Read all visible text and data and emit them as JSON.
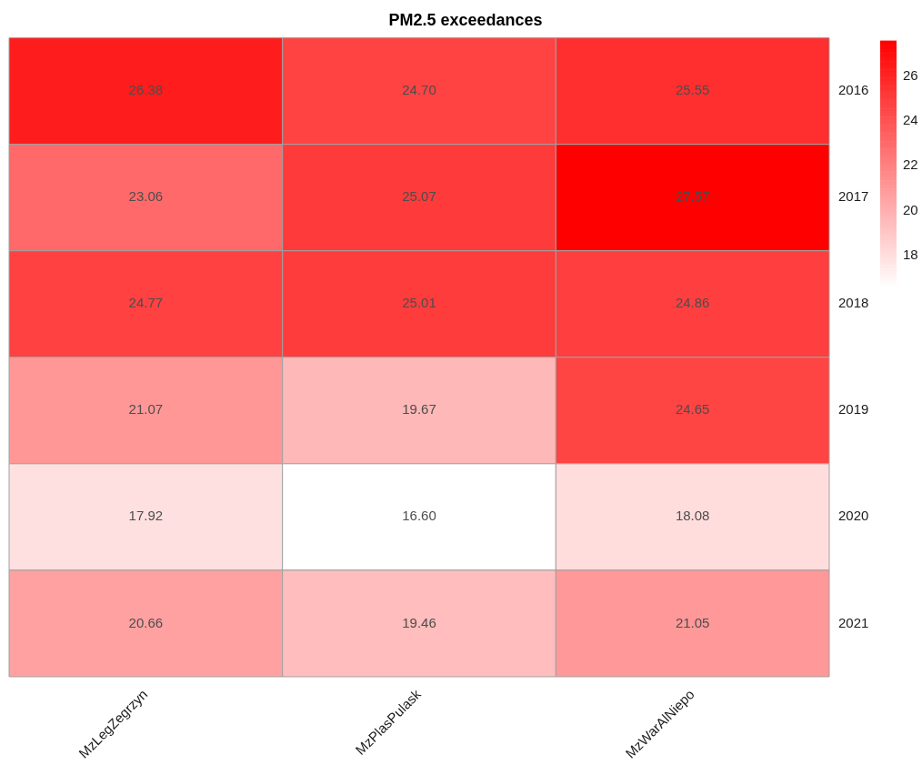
{
  "chart_data": {
    "type": "heatmap",
    "title": "PM2.5 exceedances",
    "categories": [
      "MzLegZegrzyn",
      "MzPlasPulask",
      "MzWarAlNiepo"
    ],
    "y_categories": [
      "2016",
      "2017",
      "2018",
      "2019",
      "2020",
      "2021"
    ],
    "cells": [
      [
        26.38,
        24.7,
        25.55
      ],
      [
        23.06,
        25.07,
        27.57
      ],
      [
        24.77,
        25.01,
        24.86
      ],
      [
        21.07,
        19.67,
        24.65
      ],
      [
        17.92,
        16.6,
        18.08
      ],
      [
        20.66,
        19.46,
        21.05
      ]
    ],
    "cell_labels": [
      [
        "26.38",
        "24.70",
        "25.55"
      ],
      [
        "23.06",
        "25.07",
        "27.57"
      ],
      [
        "24.77",
        "25.01",
        "24.86"
      ],
      [
        "21.07",
        "19.67",
        "24.65"
      ],
      [
        "17.92",
        "16.60",
        "18.08"
      ],
      [
        "20.66",
        "19.46",
        "21.05"
      ]
    ],
    "clim": [
      16.6,
      27.57
    ],
    "cticks": [
      18,
      20,
      22,
      24,
      26
    ]
  }
}
